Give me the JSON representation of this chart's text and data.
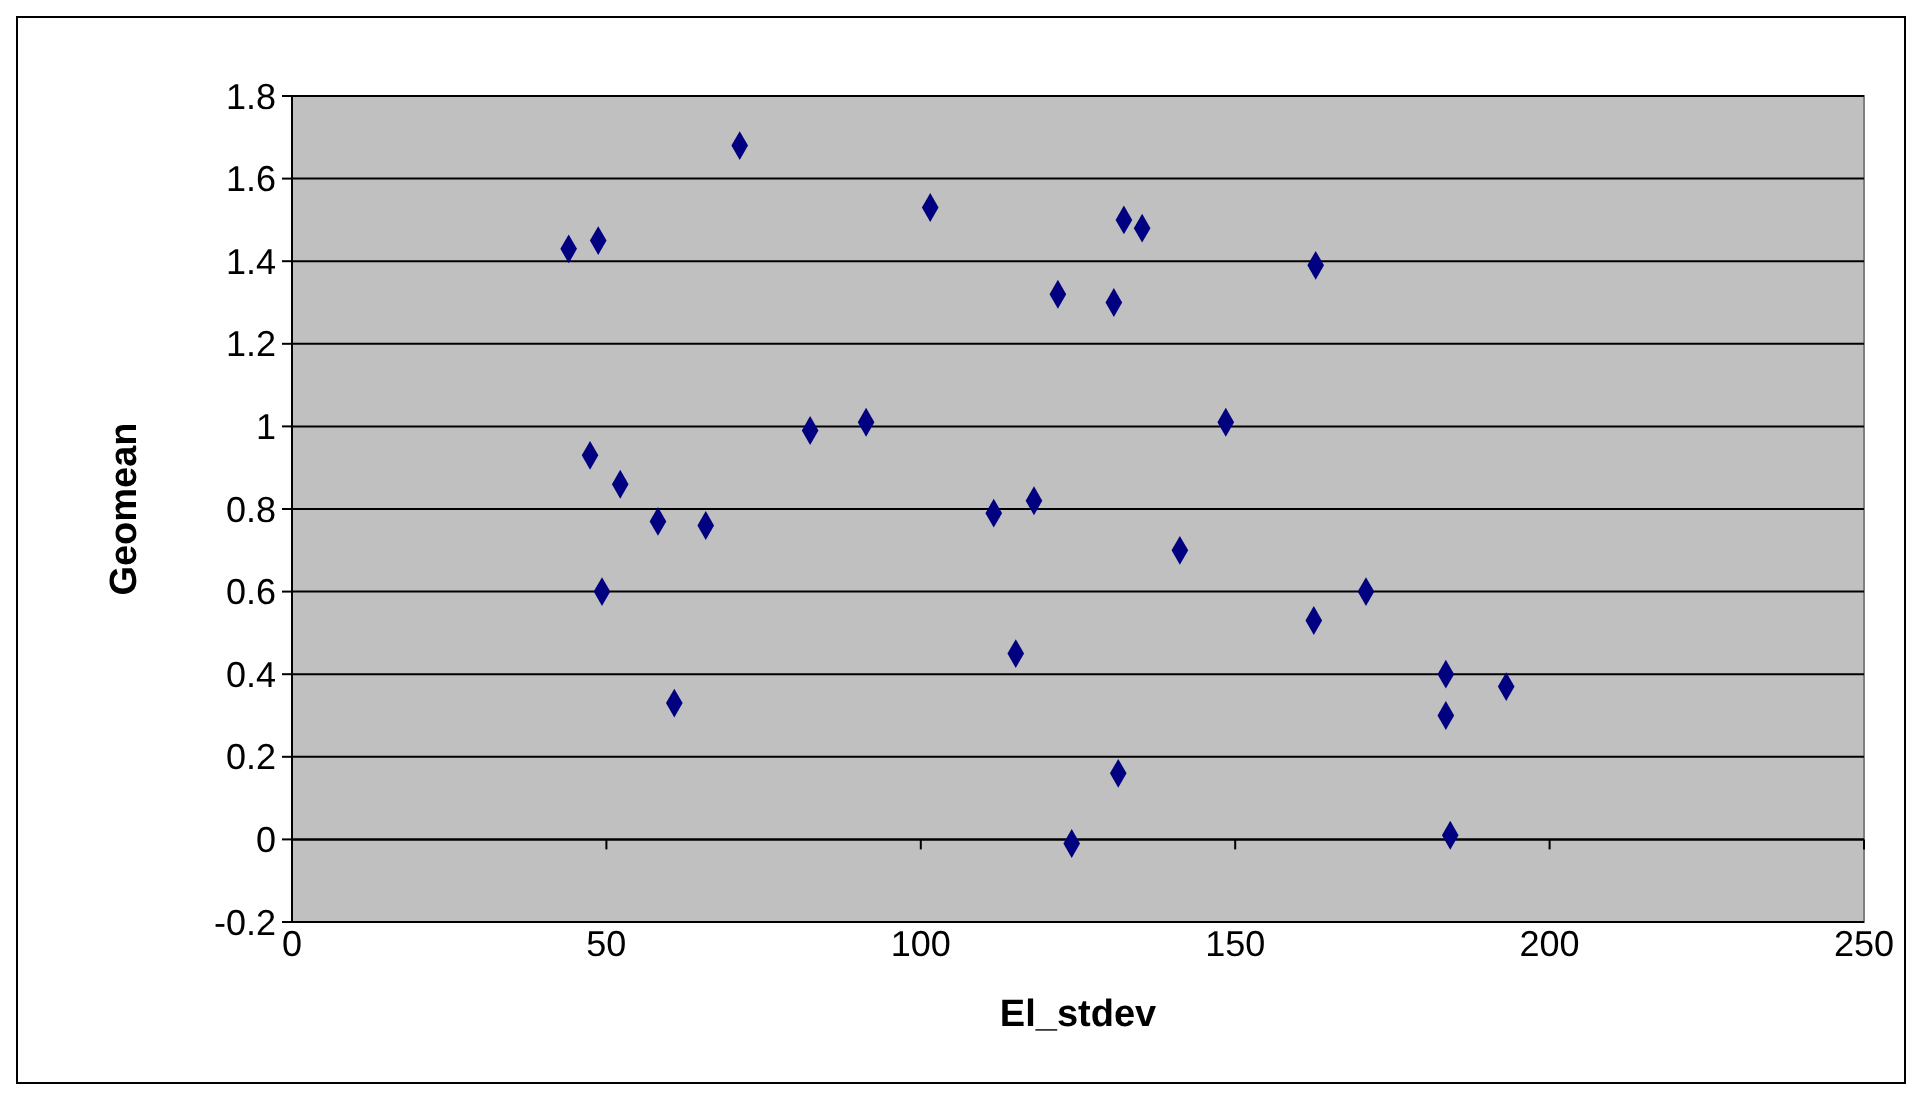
{
  "chart_data": {
    "type": "scatter",
    "xlabel": "El_stdev",
    "ylabel": "Geomean",
    "xlim": [
      0,
      250
    ],
    "xticks": [
      0,
      50,
      100,
      150,
      200,
      250
    ],
    "ylim": [
      -0.2,
      1.8
    ],
    "yticks": [
      -0.2,
      0,
      0.2,
      0.4,
      0.6,
      0.8,
      1,
      1.2,
      1.4,
      1.6,
      1.8
    ],
    "grid": "y",
    "marker": "diamond",
    "series": [
      {
        "color": "#000080",
        "x": [
          44,
          48.7,
          71.2,
          101.5,
          121.8,
          130.7,
          132.3,
          135.2,
          162.8,
          47.4,
          52.2,
          58.2,
          65.8,
          49.3,
          60.8,
          82.4,
          91.3,
          111.6,
          118,
          115.1,
          141.2,
          148.5,
          162.5,
          170.8,
          183.5,
          183.5,
          184.2,
          193.1,
          124,
          131.4
        ],
        "values": [
          1.43,
          1.45,
          1.68,
          1.53,
          1.32,
          1.3,
          1.5,
          1.48,
          1.39,
          0.93,
          0.86,
          0.77,
          0.76,
          0.6,
          0.33,
          0.99,
          1.01,
          0.79,
          0.82,
          0.45,
          0.7,
          1.01,
          0.53,
          0.6,
          0.4,
          0.3,
          0.01,
          0.37,
          -0.01,
          0.16
        ]
      }
    ]
  }
}
